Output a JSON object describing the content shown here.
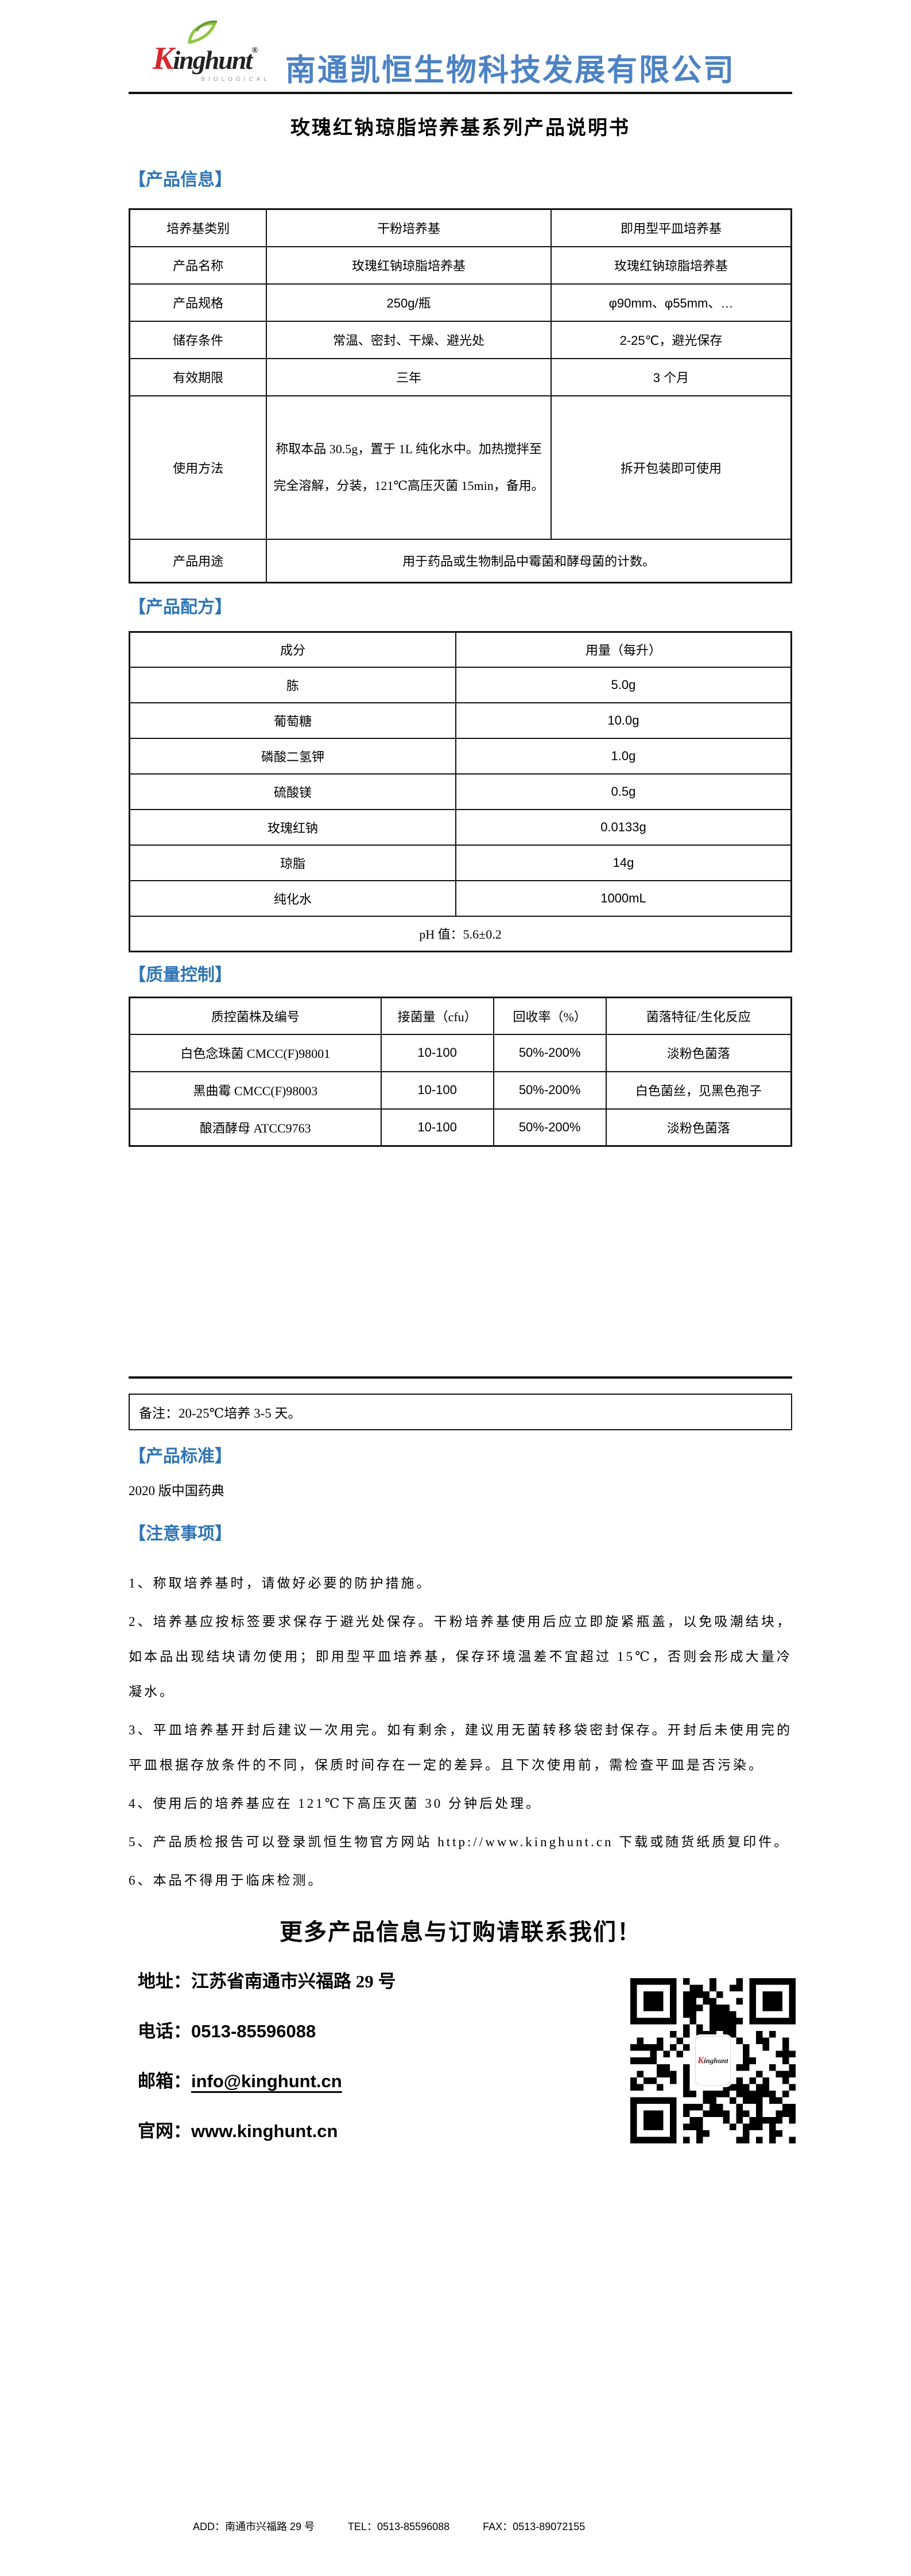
{
  "colors": {
    "heading_blue": "#2e74b5",
    "company_blue": "#4d82c4",
    "logo_red": "#d7282f",
    "leaf_green": "#8cc63e"
  },
  "header": {
    "logo_k": "K",
    "logo_rest": "inghunt",
    "logo_reg": "®",
    "logo_sub": "BIOLOGICAL",
    "company_name": "南通凯恒生物科技发展有限公司"
  },
  "doc_title": "玫瑰红钠琼脂培养基系列产品说明书",
  "product_info": {
    "heading": "【产品信息】",
    "rows": [
      {
        "c0": "培养基类别",
        "c1": "干粉培养基",
        "c2": "即用型平皿培养基"
      },
      {
        "c0": "产品名称",
        "c1": "玫瑰红钠琼脂培养基",
        "c2": "玫瑰红钠琼脂培养基"
      },
      {
        "c0": "产品规格",
        "c1": "250g/瓶",
        "c2": "φ90mm、φ55mm、…"
      },
      {
        "c0": "储存条件",
        "c1": "常温、密封、干燥、避光处",
        "c2": "2-25℃，避光保存"
      },
      {
        "c0": "有效期限",
        "c1": "三年",
        "c2": "3 个月"
      },
      {
        "c0": "使用方法",
        "c1": "称取本品 30.5g，置于 1L 纯化水中。加热搅拌至完全溶解，分装，121℃高压灭菌 15min，备用。",
        "c2": "拆开包装即可使用"
      },
      {
        "c0": "产品用途",
        "c1": "用于药品或生物制品中霉菌和酵母菌的计数。"
      }
    ]
  },
  "formula": {
    "heading": "【产品配方】",
    "headers": [
      "成分",
      "用量（每升）"
    ],
    "rows": [
      [
        "胨",
        "5.0g"
      ],
      [
        "葡萄糖",
        "10.0g"
      ],
      [
        "磷酸二氢钾",
        "1.0g"
      ],
      [
        "硫酸镁",
        "0.5g"
      ],
      [
        "玫瑰红钠",
        "0.0133g"
      ],
      [
        "琼脂",
        "14g"
      ],
      [
        "纯化水",
        "1000mL"
      ]
    ],
    "ph": "pH 值：5.6±0.2"
  },
  "quality_control": {
    "heading": "【质量控制】",
    "headers": [
      "质控菌株及编号",
      "接菌量（cfu）",
      "回收率（%）",
      "菌落特征/生化反应"
    ],
    "rows": [
      [
        "白色念珠菌 CMCC(F)98001",
        "10-100",
        "50%-200%",
        "淡粉色菌落"
      ],
      [
        "黑曲霉 CMCC(F)98003",
        "10-100",
        "50%-200%",
        "白色菌丝，见黑色孢子"
      ],
      [
        "酿酒酵母 ATCC9763",
        "10-100",
        "50%-200%",
        "淡粉色菌落"
      ]
    ]
  },
  "note_box": "备注：20-25℃培养 3-5 天。",
  "product_standard": {
    "heading": "【产品标准】",
    "text": "2020 版中国药典"
  },
  "precautions": {
    "heading": "【注意事项】",
    "items": [
      "1、称取培养基时，请做好必要的防护措施。",
      "2、培养基应按标签要求保存于避光处保存。干粉培养基使用后应立即旋紧瓶盖，以免吸潮结块，如本品出现结块请勿使用；即用型平皿培养基，保存环境温差不宜超过 15℃，否则会形成大量冷凝水。",
      "3、平皿培养基开封后建议一次用完。如有剩余，建议用无菌转移袋密封保存。开封后未使用完的平皿根据存放条件的不同，保质时间存在一定的差异。且下次使用前，需检查平皿是否污染。",
      "4、使用后的培养基应在 121℃下高压灭菌 30 分钟后处理。",
      "5、产品质检报告可以登录凯恒生物官方网站 http://www.kinghunt.cn 下载或随货纸质复印件。",
      "6、本品不得用于临床检测。"
    ]
  },
  "contact": {
    "title": "更多产品信息与订购请联系我们！",
    "address_label": "地址：",
    "address_value": "江苏省南通市兴福路 29 号",
    "phone_label": "电话：",
    "phone_value": "0513-85596088",
    "email_label": "邮箱：",
    "email_value": "info@kinghunt.cn",
    "web_label": "官网：",
    "web_value": "www.kinghunt.cn",
    "qr_logo_k": "K",
    "qr_logo_rest": "inghunt"
  },
  "footer": {
    "add": "ADD：南通市兴福路 29 号",
    "tel": "TEL：0513-85596088",
    "fax": "FAX：0513-89072155"
  }
}
